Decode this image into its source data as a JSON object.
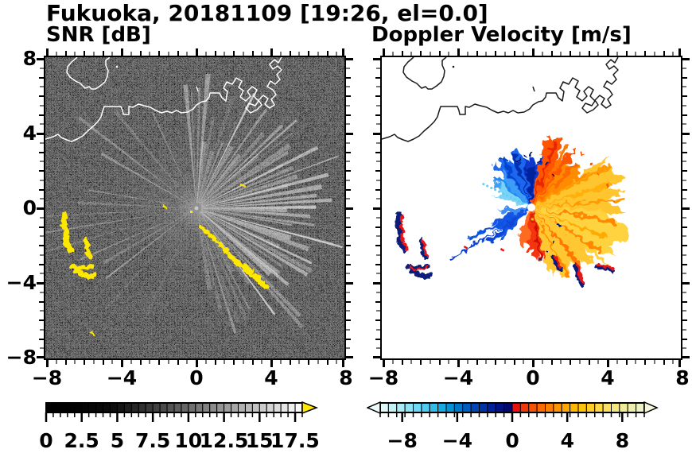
{
  "title": "Fukuoka, 20181109 [19:26, el=0.0]",
  "panels": {
    "snr": {
      "subtitle": "SNR [dB]"
    },
    "velocity": {
      "subtitle": "Doppler Velocity [m/s]"
    }
  },
  "axes": {
    "x_labels": [
      "−8",
      "−4",
      "0",
      "4",
      "8"
    ],
    "y_labels": [
      "8",
      "4",
      "0",
      "−4",
      "−8"
    ]
  },
  "colorbars": {
    "snr": {
      "labels": [
        "0",
        "2.5",
        "5",
        "7.5",
        "10",
        "12.5",
        "15",
        "17.5"
      ],
      "range": [
        0,
        18
      ],
      "overflow_color": "#ffe800",
      "segments": [
        "#000000",
        "#000000",
        "#010101",
        "#020202",
        "#030303",
        "#050505",
        "#070707",
        "#090909",
        "#0b0b0b",
        "#0e0e0e",
        "#151515",
        "#1e1e1e",
        "#272727",
        "#303030",
        "#393939",
        "#424242",
        "#4b4b4b",
        "#545454",
        "#5d5d5d",
        "#666666",
        "#707070",
        "#797979",
        "#828282",
        "#8b8b8b",
        "#949494",
        "#9d9d9d",
        "#a6a6a6",
        "#b0b0b0",
        "#b9b9b9",
        "#c2c2c2",
        "#cbcbcb",
        "#d4d4d4",
        "#dddddd",
        "#e6e6e6",
        "#f0f0f0",
        "#fafafa"
      ]
    },
    "velocity": {
      "labels": [
        "−8",
        "−4",
        "0",
        "4",
        "8"
      ],
      "range": [
        -9.6,
        9.6
      ],
      "under_arrow_color": "#eefafa",
      "over_arrow_color": "#f7f5da",
      "segments": [
        "#dcf9f7",
        "#c4f3f6",
        "#aaecf6",
        "#8de3f4",
        "#6fd8f2",
        "#50cbf0",
        "#31bcec",
        "#17a9e2",
        "#0792d6",
        "#0078c8",
        "#005cc0",
        "#0046b6",
        "#0032aa",
        "#002199",
        "#001384",
        "#000a6e",
        "#e81110",
        "#f23708",
        "#f85200",
        "#fc6a00",
        "#ff8000",
        "#ff9400",
        "#ffa600",
        "#ffb600",
        "#ffc30e",
        "#ffcf28",
        "#ffd944",
        "#f9e060",
        "#f4e67c",
        "#f0eb96",
        "#eeefae",
        "#ecf2c4"
      ]
    }
  },
  "colors": {
    "snr_background": "#000000",
    "velocity_background": "#ffffff",
    "snr_coastline": "#ffffff",
    "velocity_coastline": "#1a1a1a",
    "clutter_yellow": "#ffe800",
    "clutter_navy": "#0c1e78",
    "clutter_red": "#e81414"
  },
  "chart_data": {
    "type": "heatmap",
    "figure": "Dual-panel Doppler weather radar PPI display",
    "site": "Fukuoka",
    "date": "20181109",
    "time": "19:26",
    "elevation_deg": 0.0,
    "panels": [
      {
        "name": "SNR",
        "units": "dB",
        "xlim": [
          -8,
          8
        ],
        "ylim": [
          -8,
          8
        ],
        "xticks": [
          -8,
          -4,
          0,
          4,
          8
        ],
        "yticks": [
          8,
          4,
          0,
          -4,
          -8
        ],
        "minor_tick_step": 0.5,
        "background": "black",
        "colorbar": {
          "range": [
            0,
            18
          ],
          "segment_step": 0.5,
          "tick_labels": [
            0,
            2.5,
            5,
            7.5,
            10,
            12.5,
            15,
            17.5
          ],
          "colormap": "black-to-white grayscale",
          "over_color": "yellow"
        },
        "radar_center_xy": [
          0,
          0
        ],
        "features": [
          "grainy speckle-noise field over the whole panel",
          "bright gray radial echo fan from radar at (0,0) spanning azimuths ~355°-170° (N through E to S), strongest/longest rays toward E-SE out to ~5-8 km",
          "several thin bright rays toward WSW-W reaching the panel edge",
          "yellow (>18 dB) clutter chain from ~(0.3,-1.0) to ~(3.8,-4.2) km",
          "yellow clutter blobs near (-7.2,-0.5), (-5.9,-1.9) and (-6.3,-3.2) km",
          "small yellow flecks at ~(2.5,1.2), (-1.7,0.1) and (-5.5,-6.7) km",
          "Hakata Bay coastline drawn in white, harbor piers at upper right, island loop at upper left"
        ]
      },
      {
        "name": "Doppler Velocity",
        "units": "m/s",
        "xlim": [
          -8,
          8
        ],
        "ylim": [
          -8,
          8
        ],
        "xticks": [
          -8,
          -4,
          0,
          4,
          8
        ],
        "yticks": [
          8,
          4,
          0,
          -4,
          -8
        ],
        "minor_tick_step": 0.5,
        "background": "white",
        "colorbar": {
          "range": [
            -9.6,
            9.6
          ],
          "segment_step": 0.6,
          "tick_labels": [
            -8,
            -4,
            0,
            4,
            8
          ],
          "colormap": "pale-cyan→cyan→blue→navy for negative; red→orange→yellow→pale-yellow for positive",
          "under_over": "arrow tips on both ends"
        },
        "radar_center_xy": [
          0,
          0
        ],
        "features": [
          "dark-blue lobe (≈ -6 to -9 m/s) due N of radar, lighter blue/cyan NW",
          "dotted cyan ray toward WNW out to ~2.5 km",
          "blue wedge and long narrow blue spikes toward SW out to ~5 km",
          "red/orange lobe (≈ +5 to +9 m/s) toward NE out to ~3.5 km",
          "yellow-orange fan (≈ +3 to +7 m/s) toward E-SE out to ~4.5 km",
          "red streak with navy fringe due S of radar",
          "navy+red clutter blobs at SW (~-7,-1 to -6,-3.5 km) and SSE (~1 to 4.5,-3 to -4 km) matching SNR yellow clutter",
          "white dot at radar location, coastline drawn in black"
        ]
      }
    ]
  }
}
